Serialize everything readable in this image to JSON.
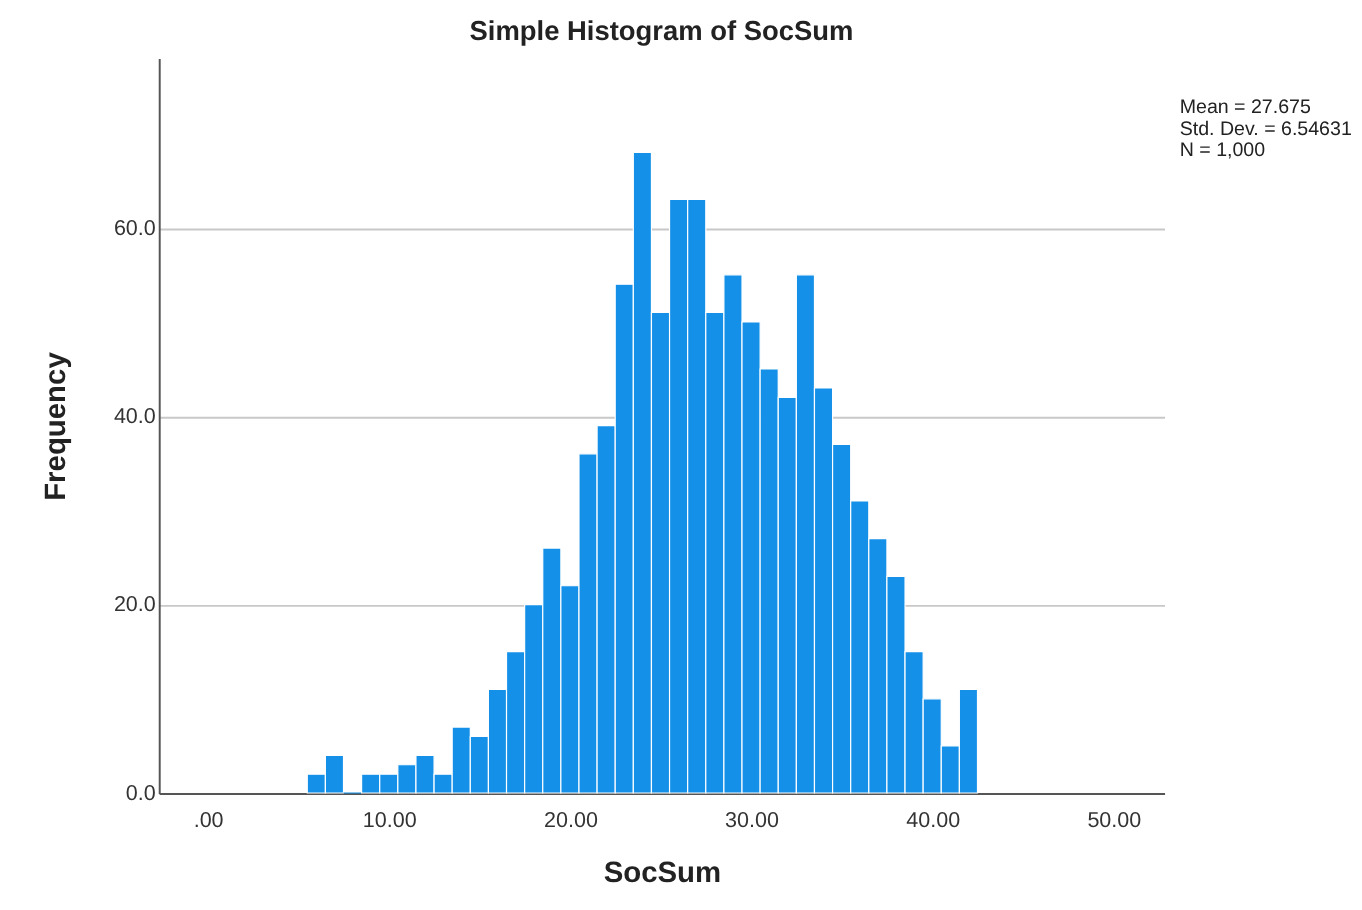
{
  "chart_data": {
    "type": "histogram",
    "title": "Simple Histogram of SocSum",
    "xlabel": "SocSum",
    "ylabel": "Frequency",
    "bins": [
      5.5,
      6.5,
      7.5,
      8.5,
      9.5,
      10.5,
      11.5,
      12.5,
      13.5,
      14.5,
      15.5,
      16.5,
      17.5,
      18.5,
      19.5,
      20.5,
      21.5,
      22.5,
      23.5,
      24.5,
      25.5,
      26.5,
      27.5,
      28.5,
      29.5,
      30.5,
      31.5,
      32.5,
      33.5,
      34.5,
      35.5,
      36.5,
      37.5,
      38.5,
      39.5,
      40.5,
      41.5,
      42.5
    ],
    "values": [
      2,
      4,
      0,
      2,
      2,
      3,
      4,
      2,
      7,
      6,
      11,
      15,
      20,
      26,
      22,
      36,
      39,
      54,
      68,
      51,
      63,
      63,
      51,
      55,
      50,
      45,
      42,
      55,
      43,
      37,
      31,
      27,
      23,
      15,
      10,
      5,
      11
    ],
    "color": "#1590e8",
    "xlim": [
      -2.7,
      52.8
    ],
    "ylim": [
      0,
      78
    ],
    "xticks": [
      {
        "value": 0,
        "label": ".00"
      },
      {
        "value": 10,
        "label": "10.00"
      },
      {
        "value": 20,
        "label": "20.00"
      },
      {
        "value": 30,
        "label": "30.00"
      },
      {
        "value": 40,
        "label": "40.00"
      },
      {
        "value": 50,
        "label": "50.00"
      }
    ],
    "yticks": [
      {
        "value": 0,
        "label": "0.0"
      },
      {
        "value": 20,
        "label": "20.0"
      },
      {
        "value": 40,
        "label": "40.0"
      },
      {
        "value": 60,
        "label": "60.0"
      }
    ],
    "grid": "y",
    "annotations": [
      "Mean = 27.675",
      "Std. Dev. = 6.54631",
      "N = 1,000"
    ]
  }
}
